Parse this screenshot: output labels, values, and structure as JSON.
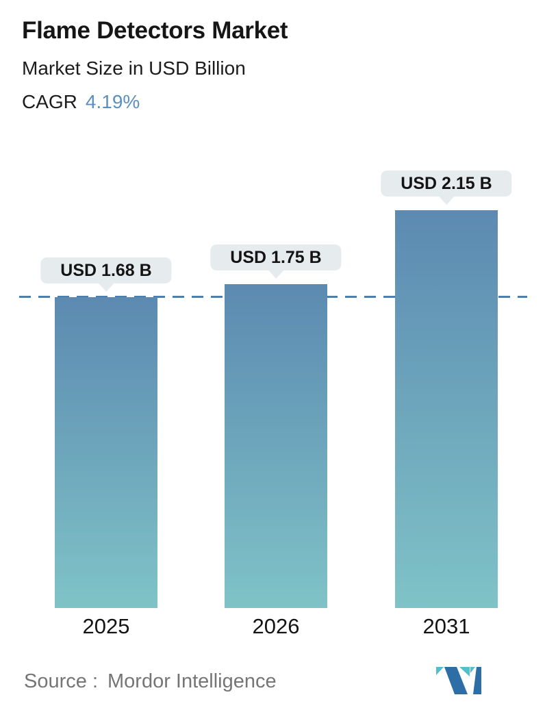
{
  "header": {
    "title": "Flame Detectors Market",
    "subtitle": "Market Size in USD Billion",
    "cagr_label": "CAGR",
    "cagr_value": "4.19%"
  },
  "chart_data": {
    "type": "bar",
    "title": "Flame Detectors Market",
    "ylabel": "Market Size in USD Billion",
    "unit": "USD Billion",
    "categories": [
      "2025",
      "2026",
      "2031"
    ],
    "values": [
      1.68,
      1.75,
      2.15
    ],
    "value_labels": [
      "USD 1.68 B",
      "USD 1.75 B",
      "USD 2.15 B"
    ],
    "ylim": [
      0,
      2.5
    ],
    "grid": false,
    "legend": false,
    "reference_line": {
      "value": 1.68,
      "style": "dashed"
    },
    "bar_gradient_top": "#5c8ab1",
    "bar_gradient_bottom": "#7fc3c7"
  },
  "footer": {
    "source_label": "Source :",
    "source_value": "Mordor Intelligence",
    "logo": "mordor-intelligence-logo"
  },
  "colors": {
    "accent_blue": "#5b8fc0",
    "dashed_line": "#4b7fad",
    "badge_bg": "#e6ebee",
    "text_primary": "#161616",
    "source_gray": "#757575",
    "logo_dark": "#2e6ea6",
    "logo_teal": "#52bfca"
  }
}
